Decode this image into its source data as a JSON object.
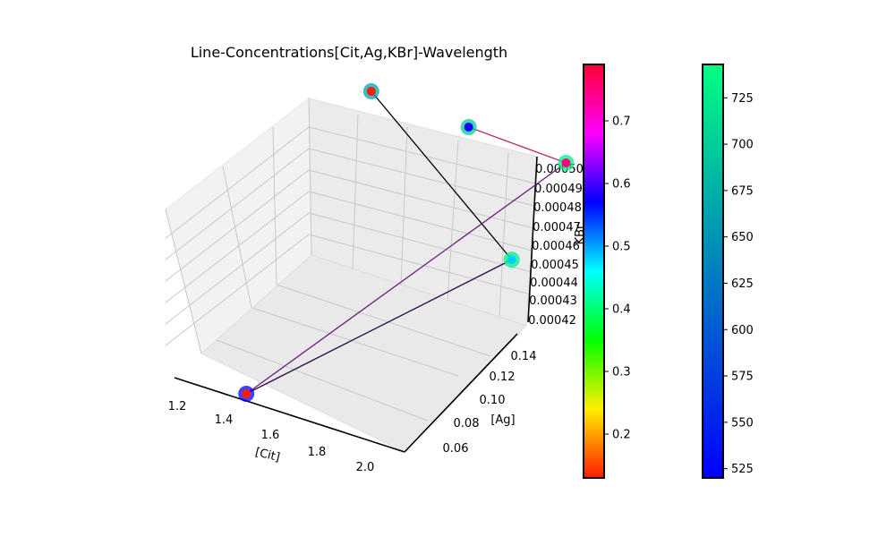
{
  "chart_data": {
    "type": "scatter",
    "projection": "3d",
    "title": "Line-Concentrations[Cit,Ag,KBr]-Wavelength",
    "xlabel": "[Cit]",
    "ylabel": "[Ag]",
    "zlabel": "KBr",
    "x_ticks": [
      "1.2",
      "1.4",
      "1.6",
      "1.8",
      "2.0"
    ],
    "y_ticks": [
      "0.06",
      "0.08",
      "0.10",
      "0.12",
      "0.14"
    ],
    "z_ticks": [
      "0.00042",
      "0.00043",
      "0.00044",
      "0.00045",
      "0.00046",
      "0.00047",
      "0.00048",
      "0.00049",
      "0.00050"
    ],
    "grid": true,
    "points": [
      {
        "x": 1.4,
        "y": 0.05,
        "z": 0.00042,
        "inner_value": 0.13,
        "outer_wavelength": 522
      },
      {
        "x": 2.0,
        "y": 0.15,
        "z": 0.00045,
        "inner_value": 0.48,
        "outer_wavelength": 735
      },
      {
        "x": 1.2,
        "y": 0.15,
        "z": 0.0005,
        "inner_value": 0.13,
        "outer_wavelength": 665
      },
      {
        "x": 1.6,
        "y": 0.15,
        "z": 0.0005,
        "inner_value": 0.58,
        "outer_wavelength": 700
      },
      {
        "x": 2.0,
        "y": 0.15,
        "z": 0.0005,
        "inner_value": 0.75,
        "outer_wavelength": 730
      }
    ],
    "lines": [
      {
        "from": 0,
        "to": 1,
        "color": "#2a0a4a"
      },
      {
        "from": 1,
        "to": 2,
        "color": "#000000"
      },
      {
        "from": 0,
        "to": 4,
        "color": "#6a1a7a"
      },
      {
        "from": 4,
        "to": 3,
        "color": "#c0286a"
      }
    ],
    "colorbar_inner": {
      "ticks": [
        "0.2",
        "0.3",
        "0.4",
        "0.5",
        "0.6",
        "0.7"
      ],
      "range": [
        0.13,
        0.79
      ],
      "colormap": "hsv-like",
      "stops": [
        "#ff1a00",
        "#ffee00",
        "#00ff00",
        "#00ffff",
        "#0000ff",
        "#ff00ff",
        "#ff0033"
      ]
    },
    "colorbar_outer": {
      "ticks": [
        "525",
        "550",
        "575",
        "600",
        "625",
        "650",
        "675",
        "700",
        "725"
      ],
      "range": [
        520,
        743
      ],
      "colormap": "winter",
      "stops": [
        "#0000ff",
        "#00ff80"
      ]
    }
  }
}
